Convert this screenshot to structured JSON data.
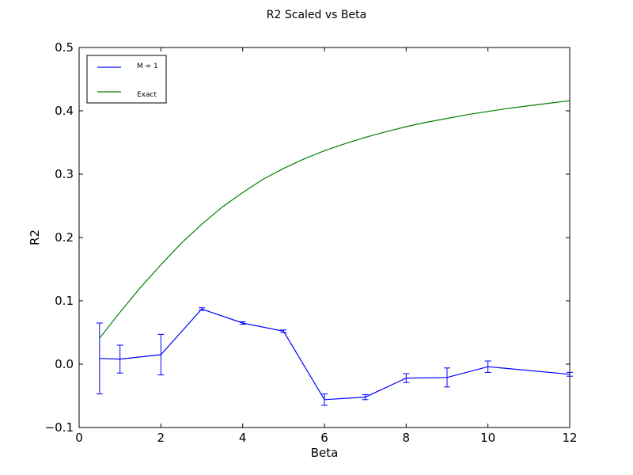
{
  "chart_data": {
    "type": "line",
    "title": "R2 Scaled vs Beta",
    "xlabel": "Beta",
    "ylabel": "R2",
    "xlim": [
      0,
      12
    ],
    "ylim": [
      -0.1,
      0.5
    ],
    "x_ticks": [
      0,
      2,
      4,
      6,
      8,
      10,
      12
    ],
    "y_ticks": [
      -0.1,
      0.0,
      0.1,
      0.2,
      0.3,
      0.4,
      0.5
    ],
    "x_tick_labels": [
      "0",
      "2",
      "4",
      "6",
      "8",
      "10",
      "12"
    ],
    "y_tick_labels": [
      "−0.1",
      "0.0",
      "0.1",
      "0.2",
      "0.3",
      "0.4",
      "0.5"
    ],
    "grid": false,
    "legend_position": "top-left",
    "series": [
      {
        "name": "M = 1",
        "color": "#0000ff",
        "x": [
          0.5,
          1,
          2,
          3,
          4,
          5,
          6,
          7,
          8,
          9,
          10,
          12
        ],
        "y": [
          0.009,
          0.008,
          0.015,
          0.087,
          0.065,
          0.052,
          -0.056,
          -0.052,
          -0.022,
          -0.021,
          -0.004,
          -0.016
        ],
        "yerr": [
          0.056,
          0.022,
          0.032,
          0.002,
          0.002,
          0.002,
          0.009,
          0.004,
          0.007,
          0.015,
          0.009,
          0.003
        ]
      },
      {
        "name": "Exact",
        "color": "#008000",
        "x": [
          0.5,
          1,
          1.5,
          2,
          2.5,
          3,
          3.5,
          4,
          4.5,
          5,
          5.5,
          6,
          6.5,
          7,
          7.5,
          8,
          8.5,
          9,
          9.5,
          10,
          10.5,
          11,
          11.5,
          12
        ],
        "y": [
          0.041,
          0.082,
          0.121,
          0.157,
          0.191,
          0.221,
          0.248,
          0.271,
          0.292,
          0.309,
          0.324,
          0.337,
          0.348,
          0.358,
          0.367,
          0.375,
          0.382,
          0.388,
          0.394,
          0.399,
          0.404,
          0.408,
          0.412,
          0.416
        ]
      }
    ]
  }
}
